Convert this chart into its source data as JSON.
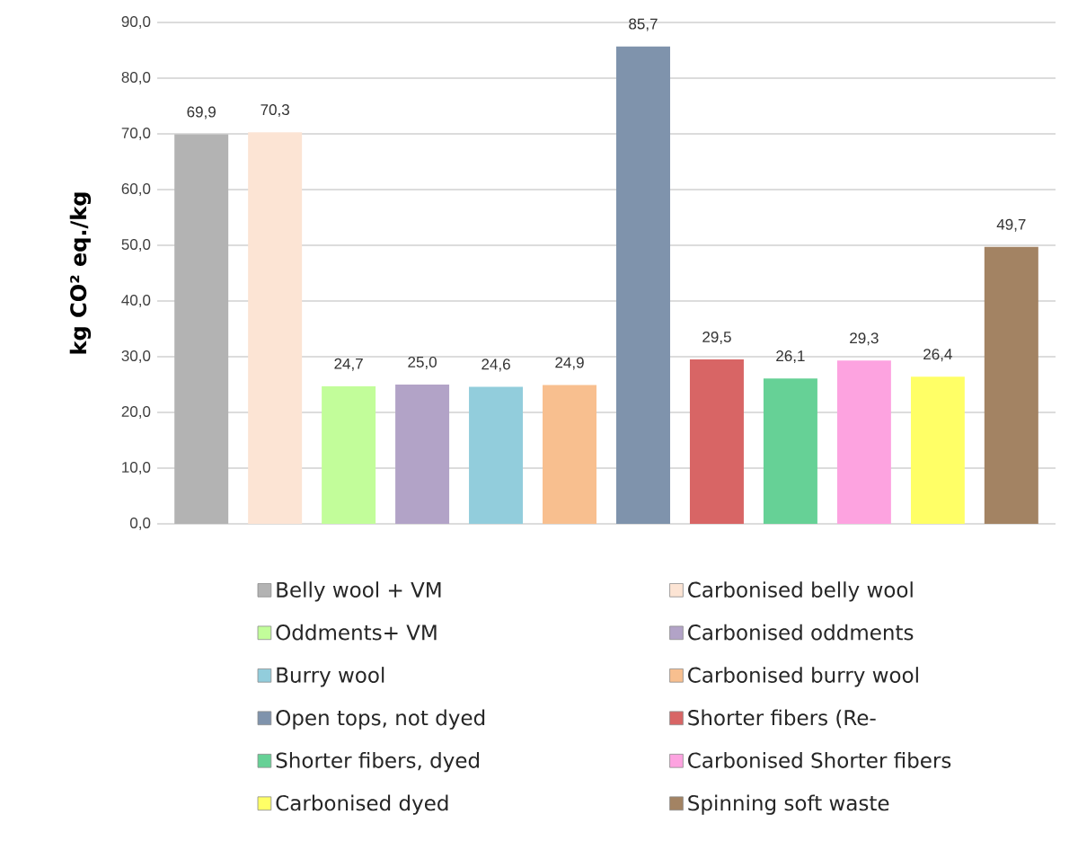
{
  "chart_data": {
    "type": "bar",
    "ylabel": "kg CO² eq./kg",
    "categories": [
      null,
      null,
      null,
      null,
      null,
      null,
      null,
      null,
      null,
      null,
      null,
      null
    ],
    "series": [
      {
        "name": "Belly wool + VM",
        "color": "#b3b3b3",
        "values": [
          69.9,
          null,
          null,
          null,
          null,
          null,
          null,
          null,
          null,
          null,
          null,
          null
        ],
        "value_labels": [
          "69,9",
          null,
          null,
          null,
          null,
          null,
          null,
          null,
          null,
          null,
          null,
          null
        ]
      },
      {
        "name": "Carbonised belly wool",
        "color": "#fce4d4",
        "values": [
          null,
          70.3,
          null,
          null,
          null,
          null,
          null,
          null,
          null,
          null,
          null,
          null
        ],
        "value_labels": [
          null,
          "70,3",
          null,
          null,
          null,
          null,
          null,
          null,
          null,
          null,
          null,
          null
        ]
      },
      {
        "name": "Oddments+ VM",
        "color": "#c2fd9a",
        "values": [
          null,
          null,
          24.7,
          null,
          null,
          null,
          null,
          null,
          null,
          null,
          null,
          null
        ],
        "value_labels": [
          null,
          null,
          "24,7",
          null,
          null,
          null,
          null,
          null,
          null,
          null,
          null,
          null
        ]
      },
      {
        "name": "Carbonised oddments",
        "color": "#b2a3c7",
        "values": [
          null,
          null,
          null,
          25.0,
          null,
          null,
          null,
          null,
          null,
          null,
          null,
          null
        ],
        "value_labels": [
          null,
          null,
          null,
          "25,0",
          null,
          null,
          null,
          null,
          null,
          null,
          null,
          null
        ]
      },
      {
        "name": "Burry wool",
        "color": "#92cddc",
        "values": [
          null,
          null,
          null,
          null,
          24.6,
          null,
          null,
          null,
          null,
          null,
          null,
          null
        ],
        "value_labels": [
          null,
          null,
          null,
          null,
          "24,6",
          null,
          null,
          null,
          null,
          null,
          null,
          null
        ]
      },
      {
        "name": "Carbonised burry wool",
        "color": "#f8bf8f",
        "values": [
          null,
          null,
          null,
          null,
          null,
          24.9,
          null,
          null,
          null,
          null,
          null,
          null
        ],
        "value_labels": [
          null,
          null,
          null,
          null,
          null,
          "24,9",
          null,
          null,
          null,
          null,
          null,
          null
        ]
      },
      {
        "name": "Open tops, not dyed",
        "color": "#7f93ac",
        "values": [
          null,
          null,
          null,
          null,
          null,
          null,
          85.7,
          null,
          null,
          null,
          null,
          null
        ],
        "value_labels": [
          null,
          null,
          null,
          null,
          null,
          null,
          "85,7",
          null,
          null,
          null,
          null,
          null
        ]
      },
      {
        "name": "Shorter fibers (Re-",
        "color": "#d86565",
        "values": [
          null,
          null,
          null,
          null,
          null,
          null,
          null,
          29.5,
          null,
          null,
          null,
          null
        ],
        "value_labels": [
          null,
          null,
          null,
          null,
          null,
          null,
          null,
          "29,5",
          null,
          null,
          null,
          null
        ]
      },
      {
        "name": "Shorter fibers, dyed",
        "color": "#66d196",
        "values": [
          null,
          null,
          null,
          null,
          null,
          null,
          null,
          null,
          26.1,
          null,
          null,
          null
        ],
        "value_labels": [
          null,
          null,
          null,
          null,
          null,
          null,
          null,
          null,
          "26,1",
          null,
          null,
          null
        ]
      },
      {
        "name": "Carbonised Shorter fibers",
        "color": "#fda3e0",
        "values": [
          null,
          null,
          null,
          null,
          null,
          null,
          null,
          null,
          null,
          29.3,
          null,
          null
        ],
        "value_labels": [
          null,
          null,
          null,
          null,
          null,
          null,
          null,
          null,
          null,
          "29,3",
          null,
          null
        ]
      },
      {
        "name": "Carbonised dyed",
        "color": "#ffff66",
        "values": [
          null,
          null,
          null,
          null,
          null,
          null,
          null,
          null,
          null,
          null,
          26.4,
          null
        ],
        "value_labels": [
          null,
          null,
          null,
          null,
          null,
          null,
          null,
          null,
          null,
          null,
          "26,4",
          null
        ]
      },
      {
        "name": "Spinning soft waste",
        "color": "#a38363",
        "values": [
          null,
          null,
          null,
          null,
          null,
          null,
          null,
          null,
          null,
          null,
          null,
          49.7
        ],
        "value_labels": [
          null,
          null,
          null,
          null,
          null,
          null,
          null,
          null,
          null,
          null,
          null,
          "49,7"
        ]
      }
    ],
    "ylim": [
      0,
      90
    ],
    "yticks": [
      {
        "value": 0,
        "label": "0,0"
      },
      {
        "value": 10,
        "label": "10,0"
      },
      {
        "value": 20,
        "label": "20,0"
      },
      {
        "value": 30,
        "label": "30,0"
      },
      {
        "value": 40,
        "label": "40,0"
      },
      {
        "value": 50,
        "label": "50,0"
      },
      {
        "value": 60,
        "label": "60,0"
      },
      {
        "value": 70,
        "label": "70,0"
      },
      {
        "value": 80,
        "label": "80,0"
      },
      {
        "value": 90,
        "label": "90,0"
      }
    ],
    "grid": "y",
    "legend": "bottom"
  }
}
